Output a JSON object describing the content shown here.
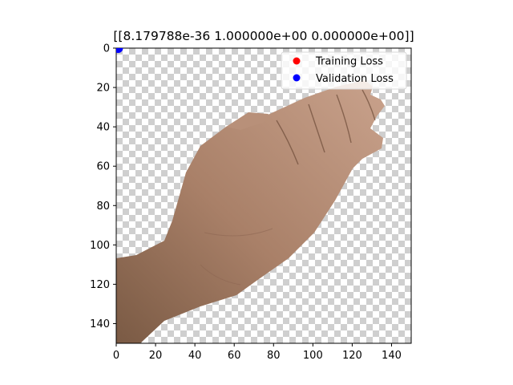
{
  "chart_data": {
    "type": "scatter",
    "title": "[[8.179788e-36 1.000000e+00 0.000000e+00]]",
    "xlabel": "",
    "ylabel": "",
    "xlim": [
      0,
      150
    ],
    "ylim": [
      150,
      0
    ],
    "y_inverted": true,
    "grid": false,
    "legend_position": "top-right",
    "xticks": [
      "0",
      "20",
      "40",
      "60",
      "80",
      "100",
      "120",
      "140"
    ],
    "yticks": [
      "0",
      "20",
      "40",
      "60",
      "80",
      "100",
      "120",
      "140"
    ],
    "xtick_values": [
      0,
      20,
      40,
      60,
      80,
      100,
      120,
      140
    ],
    "ytick_values": [
      0,
      20,
      40,
      60,
      80,
      100,
      120,
      140
    ],
    "background_image": "photo of a hand (back of hand, fingers pointing up-right) on a transparent checkerboard background",
    "series": [
      {
        "name": "Training Loss",
        "color": "#ff0000",
        "points": []
      },
      {
        "name": "Validation Loss",
        "color": "#0000ff",
        "points": [
          {
            "x": 1,
            "y": 0
          }
        ]
      }
    ]
  }
}
